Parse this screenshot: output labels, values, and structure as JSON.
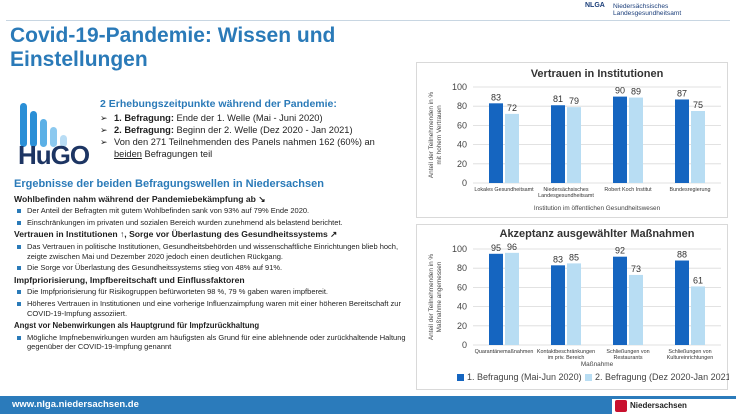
{
  "header": {
    "title": "Covid-19-Pandemie: Wissen und Einstellungen",
    "logo_abbr": "NLGA",
    "logo_name_line1": "Niedersächsisches",
    "logo_name_line2": "Landesgesundheitsamt"
  },
  "hugo": {
    "logo_text": "HuGO"
  },
  "intro": {
    "heading": "2 Erhebungszeitpunkte während der Pandemie:",
    "item1_bold": "1. Befragung:",
    "item1_rest": " Ende der 1. Welle (Mai - Juni 2020)",
    "item2_bold": "2. Befragung:",
    "item2_rest": " Beginn der 2. Welle (Dez 2020 - Jan 2021)",
    "item3_pre": "Von den 271 Teilnehmenden des Panels nahmen 162 (60%) an ",
    "item3_underline": "beiden",
    "item3_post": " Befragungen teil"
  },
  "results": {
    "heading": "Ergebnisse der beiden Befragungswellen in Niedersachsen",
    "section1": "Wohlbefinden nahm während der Pandemiebekämpfung ab ↘",
    "s1_b1": "Der Anteil der Befragten mit gutem Wohlbefinden sank von 93% auf 79% Ende 2020.",
    "s1_b2": "Einschränkungen im privaten und sozialen Bereich wurden zunehmend als belastend berichtet.",
    "section2": "Vertrauen in Institutionen ↑, Sorge vor Überlastung des Gesundheitssystems ↗",
    "s2_b1": "Das Vertrauen in politische Institutionen, Gesundheitsbehörden und wissenschaftliche Einrichtungen blieb hoch, zeigte zwischen Mai und Dezember 2020 jedoch einen deutlichen Rückgang.",
    "s2_b2": "Die Sorge vor Überlastung des Gesundheitssystems stieg von 48% auf 91%.",
    "section3": "Impfpriorisierung, Impfbereitschaft und Einflussfaktoren",
    "s3_b1": "Die Impfpriorisierung für Risikogruppen befürworteten 98 %, 79 % gaben waren impfbereit.",
    "s3_b2": "Höheres Vertrauen in Institutionen und eine vorherige Influenzaimpfung waren mit einer höheren Bereitschaft zur COVID-19-Impfung assoziiert.",
    "section4": "Angst vor Nebenwirkungen als Hauptgrund für Impfzurückhaltung",
    "s4_b1": "Mögliche Impfnebenwirkungen wurden am häufigsten als Grund für eine ablehnende oder zurückhaltende Haltung gegenüber der COVID-19-Impfung genannt"
  },
  "footer": {
    "url": "www.nlga.niedersachsen.de",
    "state": "Niedersachsen"
  },
  "colors": {
    "series1": "#1565c0",
    "series2": "#b8ddf3",
    "accent": "#2a7ab8",
    "footer": "#2b7bbb"
  },
  "chart_data": [
    {
      "type": "bar",
      "title": "Vertrauen in Institutionen",
      "xlabel": "Institution im öffentlichen Gesundheitswesen",
      "ylabel_line1": "Anteil der Teilnehmenden in %",
      "ylabel_line2": "mit hohem Vertrauen",
      "ylim": [
        0,
        100
      ],
      "yticks": [
        0,
        20,
        40,
        60,
        80,
        100
      ],
      "categories": [
        [
          "Lokales Gesundheitsamt"
        ],
        [
          "Niedersächsisches",
          "Landesgesundheitsamt"
        ],
        [
          "Robert Koch Institut"
        ],
        [
          "Bundesregierung"
        ]
      ],
      "series": [
        {
          "values": [
            83,
            81,
            90,
            87
          ]
        },
        {
          "values": [
            72,
            79,
            89,
            75
          ]
        }
      ]
    },
    {
      "type": "bar",
      "title": "Akzeptanz ausgewählter Maßnahmen",
      "xlabel": "Maßnahme",
      "ylabel_line1": "Anteil der Teilnehmenden in %",
      "ylabel_line2": "Maßnahme angemessen",
      "ylim": [
        0,
        100
      ],
      "yticks": [
        0,
        20,
        40,
        60,
        80,
        100
      ],
      "categories": [
        [
          "Quarantänemaßnahmen"
        ],
        [
          "Kontaktbeschränkungen",
          "im priv. Bereich"
        ],
        [
          "Schließungen von",
          "Restaurants"
        ],
        [
          "Schließungen von",
          "Kultureinrichtungen"
        ]
      ],
      "series": [
        {
          "name": "1. Befragung (Mai-Jun 2020)",
          "values": [
            95,
            83,
            92,
            88
          ]
        },
        {
          "name": "2. Befragung (Dez 2020-Jan 2021)",
          "values": [
            96,
            85,
            73,
            61
          ]
        }
      ]
    }
  ]
}
